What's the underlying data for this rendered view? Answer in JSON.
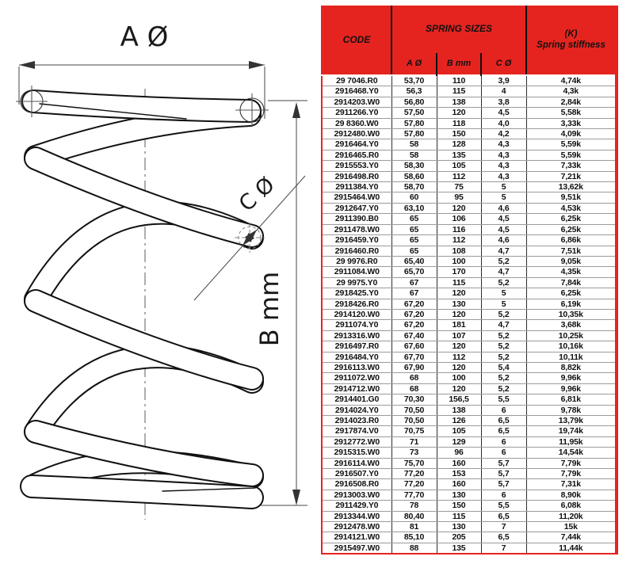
{
  "colors": {
    "header_red": "#e52420",
    "divider_black": "#2d2d2d",
    "row_line_gray": "#9b9b9b"
  },
  "diagram": {
    "label_a": "A Ø",
    "label_b": "B mm",
    "label_c": "C Ø"
  },
  "table": {
    "header": {
      "code": "CODE",
      "spring_sizes": "SPRING SIZES",
      "stiffness_line1": "(K)",
      "stiffness_line2": "Spring stiffness",
      "sub_a": "A Ø",
      "sub_b": "B mm",
      "sub_c": "C Ø"
    },
    "rows": [
      [
        "29 7046.R0",
        "53,70",
        "110",
        "3,9",
        "4,74k"
      ],
      [
        "2916468.Y0",
        "56,3",
        "115",
        "4",
        "4,3k"
      ],
      [
        "2914203.W0",
        "56,80",
        "138",
        "3,8",
        "2,84k"
      ],
      [
        "2911266.Y0",
        "57,50",
        "120",
        "4,5",
        "5,58k"
      ],
      [
        "29 8360.W0",
        "57,80",
        "118",
        "4,0",
        "3,33k"
      ],
      [
        "2912480.W0",
        "57,80",
        "150",
        "4,2",
        "4,09k"
      ],
      [
        "2916464.Y0",
        "58",
        "128",
        "4,3",
        "5,59k"
      ],
      [
        "2916465.R0",
        "58",
        "135",
        "4,3",
        "5,59k"
      ],
      [
        "2915553.Y0",
        "58,30",
        "105",
        "4,3",
        "7,33k"
      ],
      [
        "2916498.R0",
        "58,60",
        "112",
        "4,3",
        "7,21k"
      ],
      [
        "2911384.Y0",
        "58,70",
        "75",
        "5",
        "13,62k"
      ],
      [
        "2915464.W0",
        "60",
        "95",
        "5",
        "9,51k"
      ],
      [
        "2912647.Y0",
        "63,10",
        "120",
        "4,6",
        "4,53k"
      ],
      [
        "2911390.B0",
        "65",
        "106",
        "4,5",
        "6,25k"
      ],
      [
        "2911478.W0",
        "65",
        "116",
        "4,5",
        "6,25k"
      ],
      [
        "2916459.Y0",
        "65",
        "112",
        "4,6",
        "6,86k"
      ],
      [
        "2916460.R0",
        "65",
        "108",
        "4,7",
        "7,51k"
      ],
      [
        "29 9976.R0",
        "65,40",
        "100",
        "5,2",
        "9,05k"
      ],
      [
        "2911084.W0",
        "65,70",
        "170",
        "4,7",
        "4,35k"
      ],
      [
        "29 9975.Y0",
        "67",
        "115",
        "5,2",
        "7,84k"
      ],
      [
        "2918425.Y0",
        "67",
        "120",
        "5",
        "6,25k"
      ],
      [
        "2918426.R0",
        "67,20",
        "130",
        "5",
        "6,19k"
      ],
      [
        "2914120.W0",
        "67,20",
        "120",
        "5,2",
        "10,35k"
      ],
      [
        "2911074.Y0",
        "67,20",
        "181",
        "4,7",
        "3,68k"
      ],
      [
        "2913316.W0",
        "67,40",
        "107",
        "5,2",
        "10,25k"
      ],
      [
        "2916497.R0",
        "67,60",
        "120",
        "5,2",
        "10,16k"
      ],
      [
        "2916484.Y0",
        "67,70",
        "112",
        "5,2",
        "10,11k"
      ],
      [
        "2916113.W0",
        "67,90",
        "120",
        "5,4",
        "8,82k"
      ],
      [
        "2911072.W0",
        "68",
        "100",
        "5,2",
        "9,96k"
      ],
      [
        "2914712.W0",
        "68",
        "120",
        "5,2",
        "9,96k"
      ],
      [
        "2914401.G0",
        "70,30",
        "156,5",
        "5,5",
        "6,81k"
      ],
      [
        "2914024.Y0",
        "70,50",
        "138",
        "6",
        "9,78k"
      ],
      [
        "2914023.R0",
        "70,50",
        "126",
        "6,5",
        "13,79k"
      ],
      [
        "2917874.V0",
        "70,75",
        "105",
        "6,5",
        "19,74k"
      ],
      [
        "2912772.W0",
        "71",
        "129",
        "6",
        "11,95k"
      ],
      [
        "2915315.W0",
        "73",
        "96",
        "6",
        "14,54k"
      ],
      [
        "2916114.W0",
        "75,70",
        "160",
        "5,7",
        "7,79k"
      ],
      [
        "2916507.Y0",
        "77,20",
        "153",
        "5,7",
        "7,79k"
      ],
      [
        "2916508.R0",
        "77,20",
        "160",
        "5,7",
        "7,31k"
      ],
      [
        "2913003.W0",
        "77,70",
        "130",
        "6",
        "8,90k"
      ],
      [
        "2911429.Y0",
        "78",
        "150",
        "5,5",
        "6,08k"
      ],
      [
        "2913344.W0",
        "80,40",
        "115",
        "6,5",
        "11,20k"
      ],
      [
        "2912478.W0",
        "81",
        "130",
        "7",
        "15k"
      ],
      [
        "2914121.W0",
        "85,10",
        "205",
        "6,5",
        "7,44k"
      ],
      [
        "2915497.W0",
        "88",
        "135",
        "7",
        "11,44k"
      ]
    ]
  }
}
